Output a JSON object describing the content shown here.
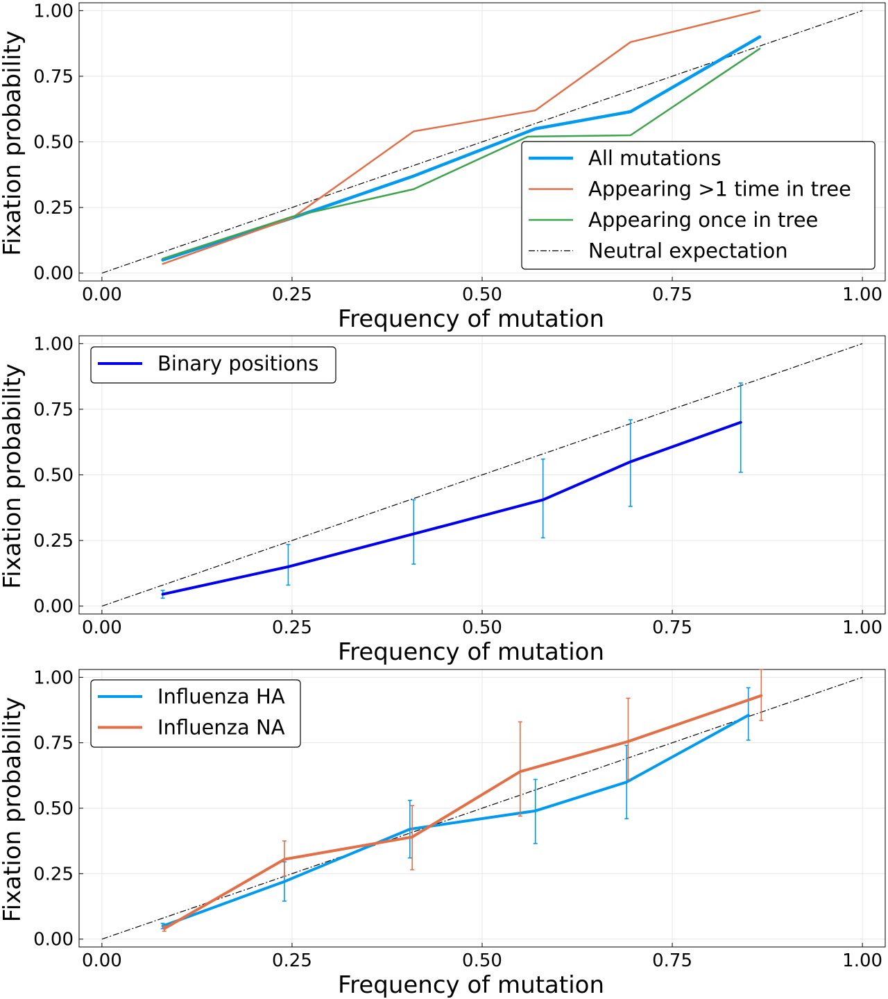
{
  "chart_data": [
    {
      "type": "line",
      "xlabel": "Frequency of mutation",
      "ylabel": "Fixation probability",
      "xlim": [
        -0.03,
        1.03
      ],
      "ylim": [
        -0.03,
        1.03
      ],
      "xticks": [
        "0.00",
        "0.25",
        "0.50",
        "0.75",
        "1.00"
      ],
      "yticks": [
        "0.00",
        "0.25",
        "0.50",
        "0.75",
        "1.00"
      ],
      "grid": true,
      "legend_position": "bottom-right",
      "series": [
        {
          "name": "All mutations",
          "color": "#009AF0",
          "width": 4.5,
          "x": [
            0.08,
            0.25,
            0.41,
            0.57,
            0.695,
            0.865
          ],
          "y": [
            0.05,
            0.21,
            0.37,
            0.55,
            0.615,
            0.9
          ]
        },
        {
          "name": "Appearing >1 time in tree",
          "color": "#E26F46",
          "width": 2.5,
          "x": [
            0.08,
            0.25,
            0.41,
            0.57,
            0.695,
            0.865
          ],
          "y": [
            0.035,
            0.21,
            0.54,
            0.62,
            0.88,
            1.0
          ]
        },
        {
          "name": "Appearing once in tree",
          "color": "#3DA44D",
          "width": 2.5,
          "x": [
            0.08,
            0.25,
            0.41,
            0.56,
            0.695,
            0.865
          ],
          "y": [
            0.055,
            0.215,
            0.32,
            0.52,
            0.525,
            0.855
          ]
        },
        {
          "name": "Neutral expectation",
          "color": "#000000",
          "width": 1.2,
          "dash": "9,3,2,3",
          "x": [
            0,
            1
          ],
          "y": [
            0,
            1
          ]
        }
      ]
    },
    {
      "type": "line",
      "xlabel": "Frequency of mutation",
      "ylabel": "Fixation probability",
      "xlim": [
        -0.03,
        1.03
      ],
      "ylim": [
        -0.03,
        1.03
      ],
      "xticks": [
        "0.00",
        "0.25",
        "0.50",
        "0.75",
        "1.00"
      ],
      "yticks": [
        "0.00",
        "0.25",
        "0.50",
        "0.75",
        "1.00"
      ],
      "grid": true,
      "legend_position": "top-left",
      "series": [
        {
          "name": "Binary positions",
          "color": "#0000F0",
          "width": 4,
          "errcolor": "#009AF0",
          "x": [
            0.08,
            0.245,
            0.41,
            0.58,
            0.695,
            0.84
          ],
          "y": [
            0.045,
            0.15,
            0.275,
            0.405,
            0.55,
            0.7
          ],
          "err_low": [
            0.03,
            0.08,
            0.16,
            0.26,
            0.38,
            0.51
          ],
          "err_high": [
            0.06,
            0.235,
            0.405,
            0.56,
            0.71,
            0.85
          ]
        },
        {
          "name": "",
          "color": "#000000",
          "width": 1.2,
          "dash": "9,3,2,3",
          "x": [
            0,
            1
          ],
          "y": [
            0,
            1
          ]
        }
      ]
    },
    {
      "type": "line",
      "xlabel": "Frequency of mutation",
      "ylabel": "Fixation probability",
      "xlim": [
        -0.03,
        1.03
      ],
      "ylim": [
        -0.03,
        1.03
      ],
      "xticks": [
        "0.00",
        "0.25",
        "0.50",
        "0.75",
        "1.00"
      ],
      "yticks": [
        "0.00",
        "0.25",
        "0.50",
        "0.75",
        "1.00"
      ],
      "grid": true,
      "legend_position": "top-left",
      "series": [
        {
          "name": "Influenza HA",
          "color": "#009AF0",
          "width": 4,
          "errcolor": "#009AF0",
          "x": [
            0.08,
            0.24,
            0.405,
            0.57,
            0.69,
            0.85
          ],
          "y": [
            0.05,
            0.22,
            0.42,
            0.49,
            0.6,
            0.855
          ],
          "err_low": [
            0.04,
            0.145,
            0.31,
            0.365,
            0.46,
            0.76
          ],
          "err_high": [
            0.06,
            0.295,
            0.53,
            0.61,
            0.74,
            0.96
          ]
        },
        {
          "name": "Influenza NA",
          "color": "#E26F46",
          "width": 4,
          "errcolor": "#E26F46",
          "x": [
            0.082,
            0.24,
            0.408,
            0.55,
            0.692,
            0.867
          ],
          "y": [
            0.04,
            0.305,
            0.39,
            0.64,
            0.755,
            0.93
          ],
          "err_low": [
            0.03,
            0.24,
            0.265,
            0.47,
            0.61,
            0.835
          ],
          "err_high": [
            0.05,
            0.375,
            0.51,
            0.83,
            0.92,
            1.03
          ]
        },
        {
          "name": "",
          "color": "#000000",
          "width": 1.2,
          "dash": "9,3,2,3",
          "x": [
            0,
            1
          ],
          "y": [
            0,
            1
          ]
        }
      ]
    }
  ]
}
